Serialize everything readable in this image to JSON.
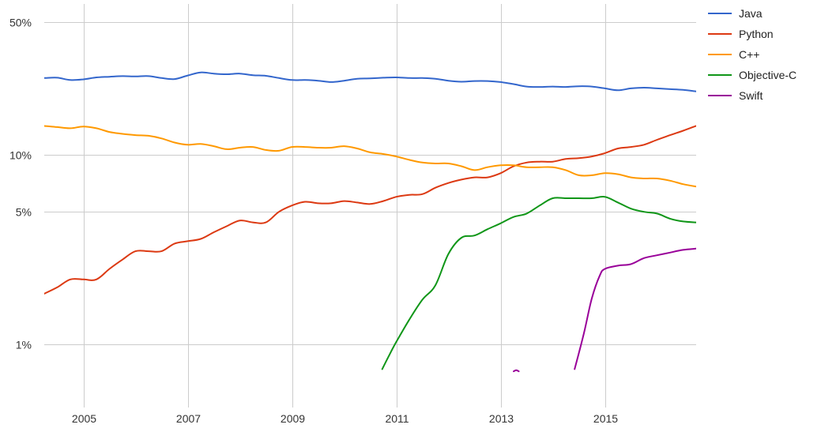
{
  "chart_data": {
    "type": "line",
    "title": "",
    "xlabel": "",
    "ylabel": "",
    "y_scale": "log",
    "ylim": [
      0.8,
      60
    ],
    "xlim": [
      2004.25,
      2016.75
    ],
    "grid": true,
    "legend_position": "right",
    "x_ticks": [
      {
        "value": 2005,
        "label": "2005"
      },
      {
        "value": 2007,
        "label": "2007"
      },
      {
        "value": 2009,
        "label": "2009"
      },
      {
        "value": 2011,
        "label": "2011"
      },
      {
        "value": 2013,
        "label": "2013"
      },
      {
        "value": 2015,
        "label": "2015"
      }
    ],
    "y_ticks": [
      {
        "value": 50,
        "label": "50%"
      },
      {
        "value": 10,
        "label": "10%"
      },
      {
        "value": 5,
        "label": "5%"
      },
      {
        "value": 1,
        "label": "1%"
      }
    ],
    "series": [
      {
        "name": "Java",
        "color": "#3366cc",
        "points": [
          [
            2004.25,
            25.4
          ],
          [
            2004.5,
            25.5
          ],
          [
            2004.75,
            24.8
          ],
          [
            2005,
            25.0
          ],
          [
            2005.25,
            25.6
          ],
          [
            2005.5,
            25.8
          ],
          [
            2005.75,
            26.0
          ],
          [
            2006,
            25.9
          ],
          [
            2006.25,
            26.0
          ],
          [
            2006.5,
            25.4
          ],
          [
            2006.75,
            25.1
          ],
          [
            2007,
            26.2
          ],
          [
            2007.25,
            27.2
          ],
          [
            2007.5,
            26.8
          ],
          [
            2007.75,
            26.6
          ],
          [
            2008,
            26.8
          ],
          [
            2008.25,
            26.3
          ],
          [
            2008.5,
            26.1
          ],
          [
            2008.75,
            25.4
          ],
          [
            2009,
            24.8
          ],
          [
            2009.25,
            24.8
          ],
          [
            2009.5,
            24.6
          ],
          [
            2009.75,
            24.2
          ],
          [
            2010,
            24.6
          ],
          [
            2010.25,
            25.2
          ],
          [
            2010.5,
            25.3
          ],
          [
            2010.75,
            25.5
          ],
          [
            2011,
            25.6
          ],
          [
            2011.25,
            25.4
          ],
          [
            2011.5,
            25.4
          ],
          [
            2011.75,
            25.2
          ],
          [
            2012,
            24.6
          ],
          [
            2012.25,
            24.3
          ],
          [
            2012.5,
            24.5
          ],
          [
            2012.75,
            24.5
          ],
          [
            2013,
            24.2
          ],
          [
            2013.25,
            23.6
          ],
          [
            2013.5,
            22.9
          ],
          [
            2013.75,
            22.8
          ],
          [
            2014,
            22.9
          ],
          [
            2014.25,
            22.8
          ],
          [
            2014.5,
            23.0
          ],
          [
            2014.75,
            22.9
          ],
          [
            2015,
            22.4
          ],
          [
            2015.25,
            21.9
          ],
          [
            2015.5,
            22.4
          ],
          [
            2015.75,
            22.6
          ],
          [
            2016,
            22.4
          ],
          [
            2016.25,
            22.2
          ],
          [
            2016.5,
            22.0
          ],
          [
            2016.75,
            21.6
          ]
        ]
      },
      {
        "name": "Python",
        "color": "#dc3912",
        "points": [
          [
            2004.25,
            1.85
          ],
          [
            2004.5,
            2.0
          ],
          [
            2004.75,
            2.2
          ],
          [
            2005,
            2.2
          ],
          [
            2005.25,
            2.2
          ],
          [
            2005.5,
            2.5
          ],
          [
            2005.75,
            2.8
          ],
          [
            2006,
            3.1
          ],
          [
            2006.25,
            3.1
          ],
          [
            2006.5,
            3.1
          ],
          [
            2006.75,
            3.4
          ],
          [
            2007,
            3.5
          ],
          [
            2007.25,
            3.6
          ],
          [
            2007.5,
            3.9
          ],
          [
            2007.75,
            4.2
          ],
          [
            2008,
            4.5
          ],
          [
            2008.25,
            4.4
          ],
          [
            2008.5,
            4.4
          ],
          [
            2008.75,
            5.0
          ],
          [
            2009,
            5.4
          ],
          [
            2009.25,
            5.65
          ],
          [
            2009.5,
            5.55
          ],
          [
            2009.75,
            5.55
          ],
          [
            2010,
            5.7
          ],
          [
            2010.25,
            5.6
          ],
          [
            2010.5,
            5.5
          ],
          [
            2010.75,
            5.7
          ],
          [
            2011,
            6.0
          ],
          [
            2011.25,
            6.15
          ],
          [
            2011.5,
            6.2
          ],
          [
            2011.75,
            6.7
          ],
          [
            2012,
            7.1
          ],
          [
            2012.25,
            7.4
          ],
          [
            2012.5,
            7.6
          ],
          [
            2012.75,
            7.6
          ],
          [
            2013,
            8.0
          ],
          [
            2013.25,
            8.7
          ],
          [
            2013.5,
            9.1
          ],
          [
            2013.75,
            9.2
          ],
          [
            2014,
            9.2
          ],
          [
            2014.25,
            9.5
          ],
          [
            2014.5,
            9.6
          ],
          [
            2014.75,
            9.8
          ],
          [
            2015,
            10.2
          ],
          [
            2015.25,
            10.8
          ],
          [
            2015.5,
            11.0
          ],
          [
            2015.75,
            11.3
          ],
          [
            2016,
            12.0
          ],
          [
            2016.25,
            12.7
          ],
          [
            2016.5,
            13.4
          ],
          [
            2016.75,
            14.2
          ]
        ]
      },
      {
        "name": "C++",
        "color": "#ff9900",
        "points": [
          [
            2004.25,
            14.2
          ],
          [
            2004.5,
            14.0
          ],
          [
            2004.75,
            13.8
          ],
          [
            2005,
            14.1
          ],
          [
            2005.25,
            13.8
          ],
          [
            2005.5,
            13.2
          ],
          [
            2005.75,
            12.9
          ],
          [
            2006,
            12.7
          ],
          [
            2006.25,
            12.6
          ],
          [
            2006.5,
            12.2
          ],
          [
            2006.75,
            11.6
          ],
          [
            2007,
            11.3
          ],
          [
            2007.25,
            11.4
          ],
          [
            2007.5,
            11.1
          ],
          [
            2007.75,
            10.7
          ],
          [
            2008,
            10.9
          ],
          [
            2008.25,
            11.0
          ],
          [
            2008.5,
            10.6
          ],
          [
            2008.75,
            10.5
          ],
          [
            2009,
            11.0
          ],
          [
            2009.25,
            11.0
          ],
          [
            2009.5,
            10.9
          ],
          [
            2009.75,
            10.9
          ],
          [
            2010,
            11.1
          ],
          [
            2010.25,
            10.8
          ],
          [
            2010.5,
            10.3
          ],
          [
            2010.75,
            10.1
          ],
          [
            2011,
            9.8
          ],
          [
            2011.25,
            9.4
          ],
          [
            2011.5,
            9.1
          ],
          [
            2011.75,
            9.0
          ],
          [
            2012,
            9.0
          ],
          [
            2012.25,
            8.7
          ],
          [
            2012.5,
            8.3
          ],
          [
            2012.75,
            8.6
          ],
          [
            2013,
            8.8
          ],
          [
            2013.25,
            8.8
          ],
          [
            2013.5,
            8.6
          ],
          [
            2013.75,
            8.6
          ],
          [
            2014,
            8.6
          ],
          [
            2014.25,
            8.3
          ],
          [
            2014.5,
            7.8
          ],
          [
            2014.75,
            7.8
          ],
          [
            2015,
            8.0
          ],
          [
            2015.25,
            7.9
          ],
          [
            2015.5,
            7.6
          ],
          [
            2015.75,
            7.5
          ],
          [
            2016,
            7.5
          ],
          [
            2016.25,
            7.3
          ],
          [
            2016.5,
            7.0
          ],
          [
            2016.75,
            6.8
          ]
        ]
      },
      {
        "name": "Objective-C",
        "color": "#109618",
        "points": [
          [
            2010.73,
            0.74
          ],
          [
            2010.85,
            0.86
          ],
          [
            2011,
            1.03
          ],
          [
            2011.25,
            1.35
          ],
          [
            2011.5,
            1.72
          ],
          [
            2011.75,
            2.05
          ],
          [
            2012,
            3.0
          ],
          [
            2012.25,
            3.65
          ],
          [
            2012.5,
            3.75
          ],
          [
            2012.75,
            4.05
          ],
          [
            2013,
            4.35
          ],
          [
            2013.25,
            4.7
          ],
          [
            2013.5,
            4.9
          ],
          [
            2013.75,
            5.4
          ],
          [
            2014,
            5.9
          ],
          [
            2014.25,
            5.9
          ],
          [
            2014.5,
            5.9
          ],
          [
            2014.75,
            5.9
          ],
          [
            2015,
            6.0
          ],
          [
            2015.25,
            5.6
          ],
          [
            2015.5,
            5.2
          ],
          [
            2015.75,
            5.0
          ],
          [
            2016,
            4.9
          ],
          [
            2016.25,
            4.6
          ],
          [
            2016.5,
            4.45
          ],
          [
            2016.75,
            4.4
          ]
        ]
      },
      {
        "name": "Swift",
        "color": "#990099",
        "points": [
          [
            2014.42,
            0.74
          ],
          [
            2014.6,
            1.15
          ],
          [
            2014.75,
            1.75
          ],
          [
            2014.9,
            2.3
          ],
          [
            2015,
            2.5
          ],
          [
            2015.25,
            2.6
          ],
          [
            2015.5,
            2.65
          ],
          [
            2015.75,
            2.85
          ],
          [
            2016,
            2.95
          ],
          [
            2016.25,
            3.05
          ],
          [
            2016.5,
            3.15
          ],
          [
            2016.75,
            3.2
          ]
        ]
      },
      {
        "name": "",
        "color": "#990099",
        "points": [
          [
            2013.25,
            0.72
          ],
          [
            2013.3,
            0.73
          ],
          [
            2013.35,
            0.72
          ]
        ]
      }
    ]
  }
}
